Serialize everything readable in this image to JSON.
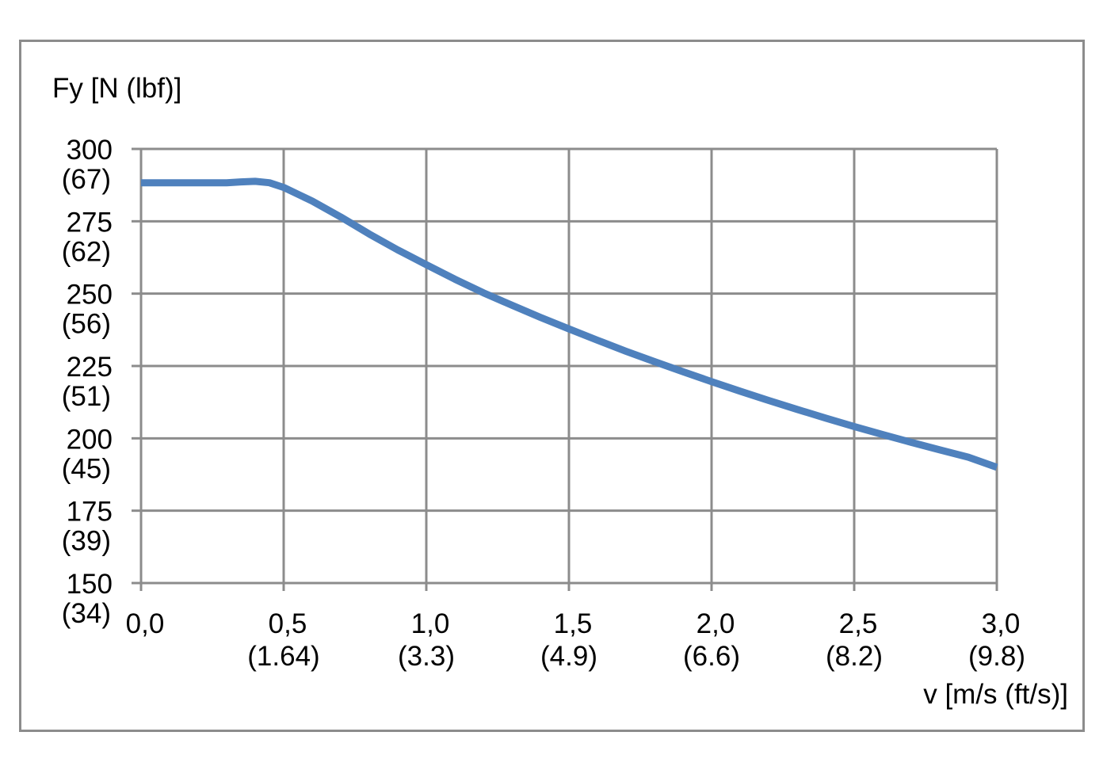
{
  "chart_data": {
    "type": "line",
    "ylabel": "Fy [N (lbf)]",
    "xlabel": "v [m/s (ft/s)]",
    "xlim": [
      0,
      3.0
    ],
    "ylim": [
      150,
      300
    ],
    "grid": true,
    "x_ticks": [
      {
        "value": 0.0,
        "label": "0,0",
        "sub": ""
      },
      {
        "value": 0.5,
        "label": "0,5",
        "sub": "(1.64)"
      },
      {
        "value": 1.0,
        "label": "1,0",
        "sub": "(3.3)"
      },
      {
        "value": 1.5,
        "label": "1,5",
        "sub": "(4.9)"
      },
      {
        "value": 2.0,
        "label": "2,0",
        "sub": "(6.6)"
      },
      {
        "value": 2.5,
        "label": "2,5",
        "sub": "(8.2)"
      },
      {
        "value": 3.0,
        "label": "3,0",
        "sub": "(9.8)"
      }
    ],
    "y_ticks": [
      {
        "value": 300,
        "label": "300",
        "sub": "(67)"
      },
      {
        "value": 275,
        "label": "275",
        "sub": "(62)"
      },
      {
        "value": 250,
        "label": "250",
        "sub": "(56)"
      },
      {
        "value": 225,
        "label": "225",
        "sub": "(51)"
      },
      {
        "value": 200,
        "label": "200",
        "sub": "(45)"
      },
      {
        "value": 175,
        "label": "175",
        "sub": "(39)"
      },
      {
        "value": 150,
        "label": "150",
        "sub": "(34)"
      }
    ],
    "series": [
      {
        "color": "#4f81bd",
        "x": [
          0.0,
          0.1,
          0.2,
          0.3,
          0.35,
          0.4,
          0.45,
          0.5,
          0.6,
          0.7,
          0.8,
          0.9,
          1.0,
          1.1,
          1.2,
          1.3,
          1.4,
          1.5,
          1.6,
          1.7,
          1.8,
          1.9,
          2.0,
          2.1,
          2.2,
          2.3,
          2.4,
          2.5,
          2.6,
          2.7,
          2.8,
          2.9,
          3.0
        ],
        "y": [
          288.3,
          288.3,
          288.3,
          288.3,
          288.6,
          288.8,
          288.3,
          286.7,
          282.0,
          276.5,
          270.6,
          265.1,
          260.0,
          255.0,
          250.3,
          246.0,
          241.8,
          237.8,
          233.9,
          230.1,
          226.5,
          223.0,
          219.6,
          216.3,
          213.1,
          210.0,
          207.0,
          204.1,
          201.3,
          198.6,
          196.0,
          193.5,
          190.0
        ]
      }
    ]
  }
}
